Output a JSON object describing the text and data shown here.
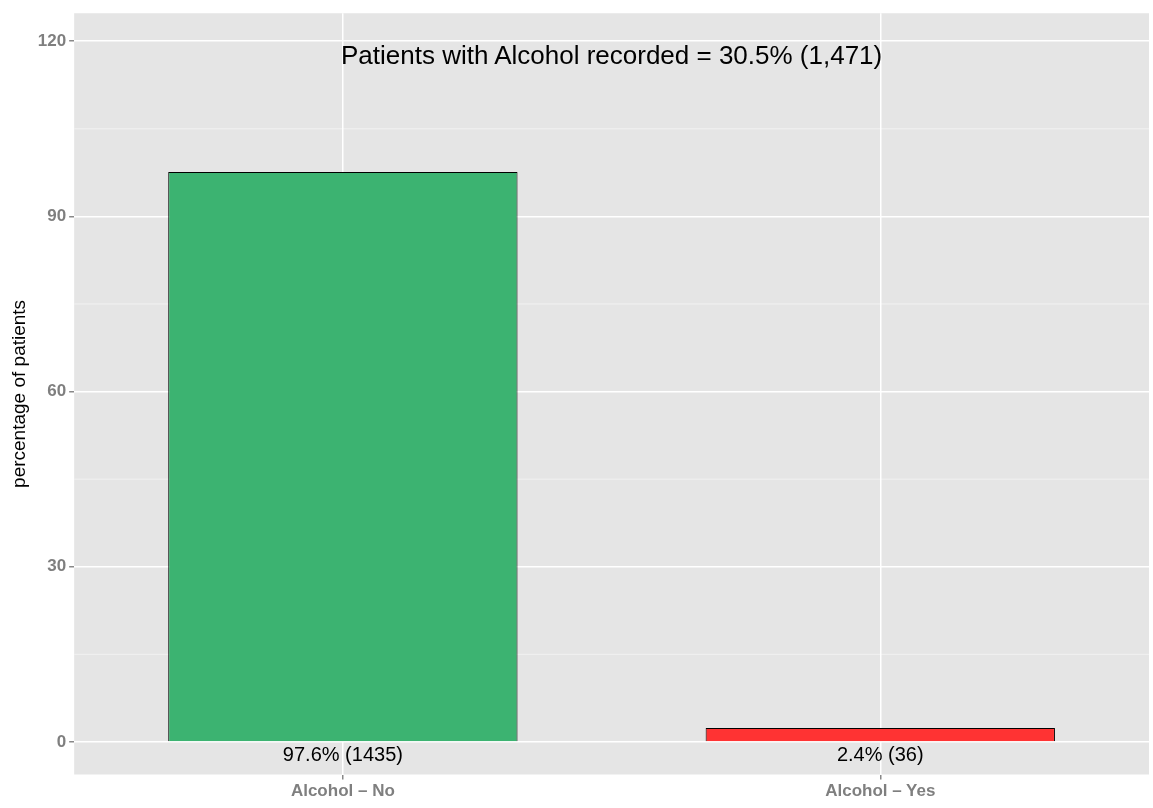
{
  "chart_data": {
    "type": "bar",
    "categories": [
      "Alcohol – No",
      "Alcohol – Yes"
    ],
    "values": [
      97.6,
      2.4
    ],
    "colors": [
      "#3cb371",
      "#ff3333"
    ],
    "value_labels": [
      "97.6% (1435)",
      "2.4% (36)"
    ],
    "ylabel": "percentage of patients",
    "ylim": [
      -5.6,
      124.8
    ],
    "yticks": [
      0,
      30,
      60,
      90,
      120
    ],
    "grid": true,
    "annotations": [
      "Patients with Alcohol recorded = 30.5% (1,471)"
    ]
  }
}
